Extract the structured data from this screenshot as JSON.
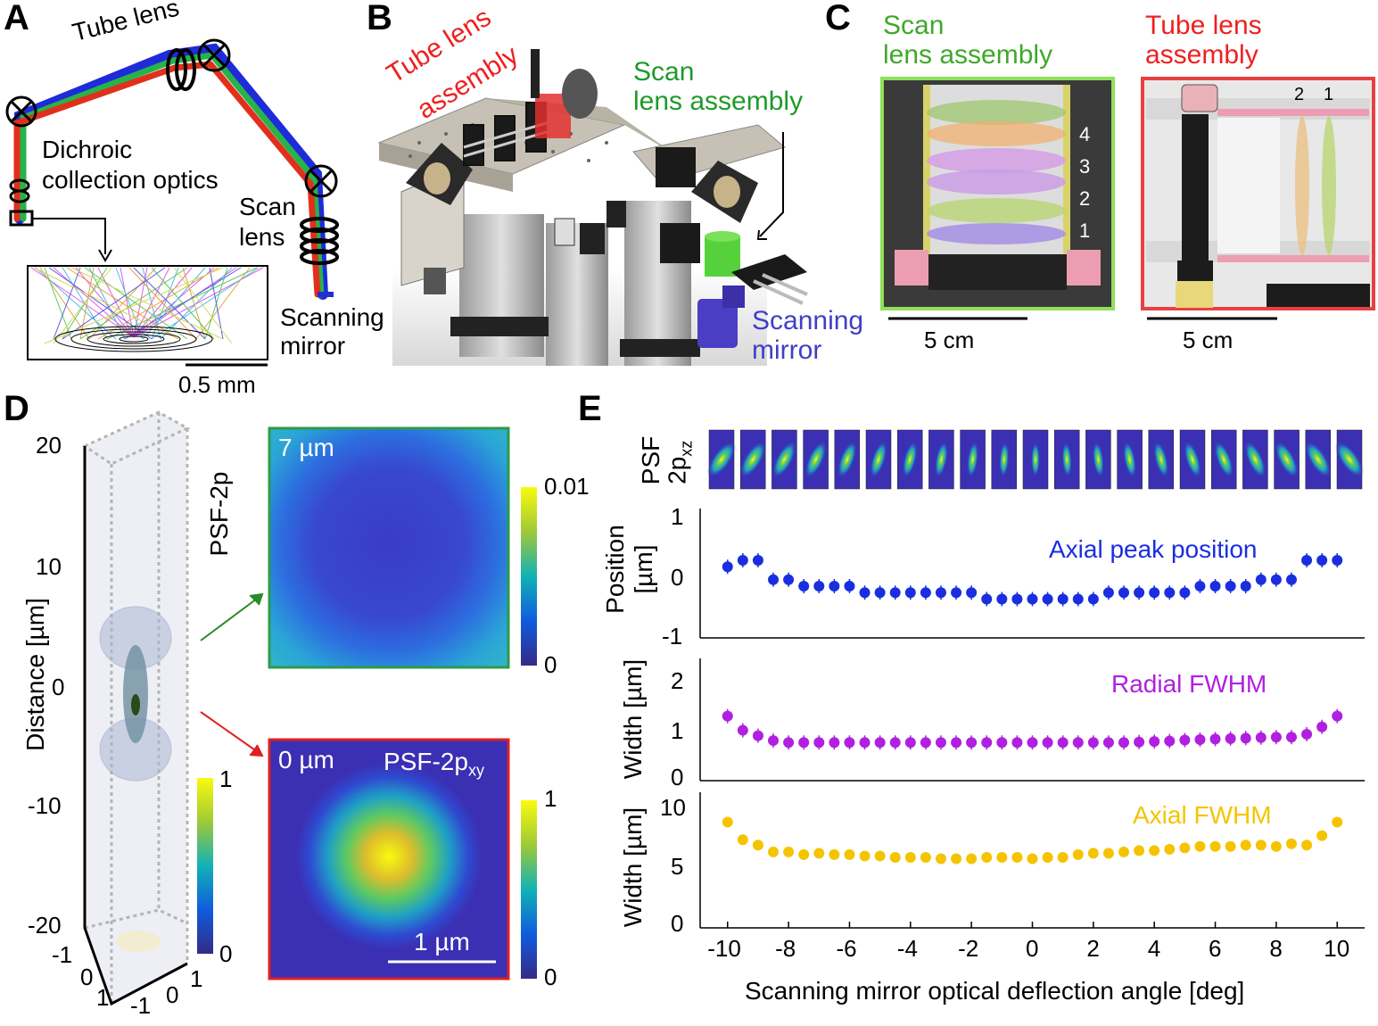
{
  "panels": {
    "A": {
      "label": "A",
      "tube_lens": "Tube lens",
      "dichroic_line1": "Dichroic",
      "dichroic_line2": "collection optics",
      "scan_line1": "Scan",
      "scan_line2": "lens",
      "mirror_line1": "Scanning",
      "mirror_line2": "mirror",
      "scalebar": "0.5 mm"
    },
    "B": {
      "label": "B",
      "tube_line1": "Tube lens",
      "tube_line2": "assembly",
      "scan_line1": "Scan",
      "scan_line2": "lens assembly",
      "mirror_line1": "Scanning",
      "mirror_line2": "mirror"
    },
    "C": {
      "label": "C",
      "scan_line1": "Scan",
      "scan_line2": "lens assembly",
      "tube_line1": "Tube lens",
      "tube_line2": "assembly",
      "scan_numbers": [
        "4",
        "3",
        "2",
        "1"
      ],
      "tube_numbers": [
        "2",
        "1"
      ],
      "scalebar_left": "5 cm",
      "scalebar_right": "5 cm"
    },
    "D": {
      "label": "D",
      "axis_label": "Distance [µm]",
      "z_ticks": [
        "20",
        "10",
        "0",
        "-10",
        "-20"
      ],
      "x_ticks": [
        "-1",
        "0",
        "1"
      ],
      "y_ticks": [
        "1",
        "0",
        "-1"
      ],
      "psf_label": "PSF-2p",
      "colorbar3d": [
        "1",
        "0"
      ],
      "top_map_label": "7 µm",
      "top_colorbar": [
        "0.01",
        "0"
      ],
      "bottom_map_label": "0 µm",
      "bottom_map_title_main": "PSF-2p",
      "bottom_map_title_sub": "xy",
      "bottom_colorbar": [
        "1",
        "0"
      ],
      "bottom_scalebar": "1 µm",
      "colors": {
        "top_frame": "#2e9a4a",
        "bottom_frame": "#e02020",
        "arrow_top": "#2a8a2a",
        "arrow_bottom": "#e02020"
      }
    },
    "E": {
      "label": "E",
      "psf_strip_main": "PSF",
      "psf_strip_line2": "2p",
      "psf_strip_sub": "xz",
      "psf_tile_count": 21,
      "xlabel": "Scanning mirror optical deflection angle [deg]",
      "x_ticks": [
        "-10",
        "-8",
        "-6",
        "-4",
        "-2",
        "0",
        "2",
        "4",
        "6",
        "8",
        "10"
      ],
      "axial_peak_label": "Axial peak position",
      "radial_label": "Radial FWHM",
      "axial_fwhm_label": "Axial FWHM",
      "pos_ylabel_line1": "Position",
      "pos_ylabel_line2": "[µm]",
      "pos_yticks": [
        "1",
        "0",
        "-1"
      ],
      "rad_ylabel": "Width [µm]",
      "rad_yticks": [
        "2",
        "1",
        "0"
      ],
      "ax_ylabel": "Width [µm]",
      "ax_yticks": [
        "10",
        "5",
        "0"
      ],
      "colors": {
        "axial_peak": "#1a2ee0",
        "radial": "#b020e0",
        "axial_fwhm": "#f5c400"
      }
    }
  },
  "chart_data": [
    {
      "type": "scatter",
      "title": "Axial peak position",
      "x": [
        -10,
        -9.5,
        -9,
        -8.5,
        -8,
        -7.5,
        -7,
        -6.5,
        -6,
        -5.5,
        -5,
        -4.5,
        -4,
        -3.5,
        -3,
        -2.5,
        -2,
        -1.5,
        -1,
        -0.5,
        0,
        0.5,
        1,
        1.5,
        2,
        2.5,
        3,
        3.5,
        4,
        4.5,
        5,
        5.5,
        6,
        6.5,
        7,
        7.5,
        8,
        8.5,
        9,
        9.5,
        10
      ],
      "y": [
        0.1,
        0.2,
        0.2,
        -0.1,
        -0.1,
        -0.2,
        -0.2,
        -0.2,
        -0.2,
        -0.3,
        -0.3,
        -0.3,
        -0.3,
        -0.3,
        -0.3,
        -0.3,
        -0.3,
        -0.4,
        -0.4,
        -0.4,
        -0.4,
        -0.4,
        -0.4,
        -0.4,
        -0.4,
        -0.3,
        -0.3,
        -0.3,
        -0.3,
        -0.3,
        -0.3,
        -0.2,
        -0.2,
        -0.2,
        -0.2,
        -0.1,
        -0.1,
        -0.1,
        0.2,
        0.2,
        0.2
      ],
      "xlabel": "Scanning mirror optical deflection angle [deg]",
      "ylabel": "Position [µm]",
      "xlim": [
        -10.9,
        10.9
      ],
      "ylim": [
        -1,
        1
      ]
    },
    {
      "type": "scatter",
      "title": "Radial FWHM",
      "x": [
        -10,
        -9.5,
        -9,
        -8.5,
        -8,
        -7.5,
        -7,
        -6.5,
        -6,
        -5.5,
        -5,
        -4.5,
        -4,
        -3.5,
        -3,
        -2.5,
        -2,
        -1.5,
        -1,
        -0.5,
        0,
        0.5,
        1,
        1.5,
        2,
        2.5,
        3,
        3.5,
        4,
        4.5,
        5,
        5.5,
        6,
        6.5,
        7,
        7.5,
        8,
        8.5,
        9,
        9.5,
        10
      ],
      "y": [
        1.32,
        1.03,
        0.92,
        0.82,
        0.78,
        0.78,
        0.78,
        0.78,
        0.78,
        0.78,
        0.78,
        0.78,
        0.78,
        0.78,
        0.78,
        0.78,
        0.78,
        0.78,
        0.78,
        0.78,
        0.78,
        0.78,
        0.78,
        0.78,
        0.78,
        0.78,
        0.78,
        0.79,
        0.8,
        0.81,
        0.83,
        0.84,
        0.85,
        0.86,
        0.87,
        0.88,
        0.89,
        0.89,
        0.95,
        1.1,
        1.32
      ],
      "xlabel": "Scanning mirror optical deflection angle [deg]",
      "ylabel": "Width [µm]",
      "xlim": [
        -10.9,
        10.9
      ],
      "ylim": [
        0,
        2.5
      ]
    },
    {
      "type": "scatter",
      "title": "Axial FWHM",
      "x": [
        -10,
        -9.5,
        -9,
        -8.5,
        -8,
        -7.5,
        -7,
        -6.5,
        -6,
        -5.5,
        -5,
        -4.5,
        -4,
        -3.5,
        -3,
        -2.5,
        -2,
        -1.5,
        -1,
        -0.5,
        0,
        0.5,
        1,
        1.5,
        2,
        2.5,
        3,
        3.5,
        4,
        4.5,
        5,
        5.5,
        6,
        6.5,
        7,
        7.5,
        8,
        8.5,
        9,
        9.5,
        10
      ],
      "y": [
        7.8,
        6.5,
        6.1,
        5.6,
        5.6,
        5.4,
        5.5,
        5.4,
        5.4,
        5.3,
        5.3,
        5.2,
        5.2,
        5.2,
        5.1,
        5.1,
        5.1,
        5.2,
        5.2,
        5.2,
        5.1,
        5.2,
        5.2,
        5.4,
        5.5,
        5.5,
        5.6,
        5.7,
        5.7,
        5.8,
        5.9,
        6.0,
        6.0,
        6.0,
        6.1,
        6.1,
        6.0,
        6.2,
        6.1,
        6.8,
        7.8
      ],
      "xlabel": "Scanning mirror optical deflection angle [deg]",
      "ylabel": "Width [µm]",
      "xlim": [
        -10.9,
        10.9
      ],
      "ylim": [
        0,
        10
      ]
    }
  ]
}
